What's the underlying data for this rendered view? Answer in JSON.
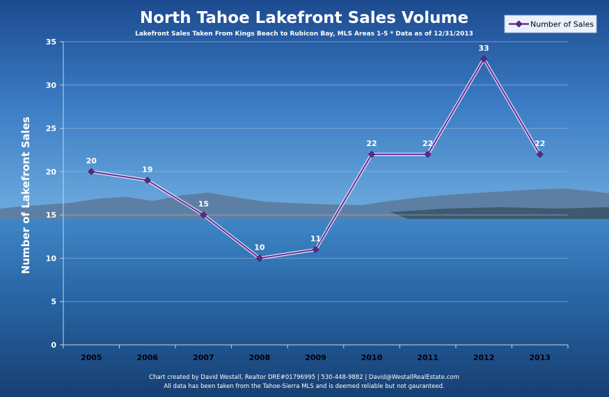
{
  "chart_data": {
    "type": "line",
    "title": "North Tahoe Lakefront Sales Volume",
    "subtitle": "Lakefront Sales Taken From Kings Beach to Rubicon Bay, MLS Areas 1-5  * Data as of 12/31/2013",
    "ylabel": "Number of Lakefront Sales",
    "xlabel": "",
    "categories": [
      "2005",
      "2006",
      "2007",
      "2008",
      "2009",
      "2010",
      "2011",
      "2012",
      "2013"
    ],
    "series": [
      {
        "name": "Number of Sales",
        "values": [
          20,
          19,
          15,
          10,
          11,
          22,
          22,
          33,
          22
        ]
      }
    ],
    "ylim": [
      0,
      35
    ],
    "yticks": [
      "0",
      "5",
      "10",
      "15",
      "20",
      "25",
      "30",
      "35"
    ],
    "grid": true,
    "legend": "top-right",
    "colors": {
      "line": "#7030a0",
      "line_outline": "#ffffff",
      "marker": "#5b2a86",
      "grid": "#8fb0d8",
      "axis": "#c8d6e8"
    }
  },
  "footer": {
    "line1": "Chart created by David Westall, Realtor DRE#01796995 | 530-448-9882 | David@WestallRealEstate.com",
    "line2": "All data has been taken from the Tahoe-Sierra MLS and is deemed reliable but not gauranteed."
  }
}
